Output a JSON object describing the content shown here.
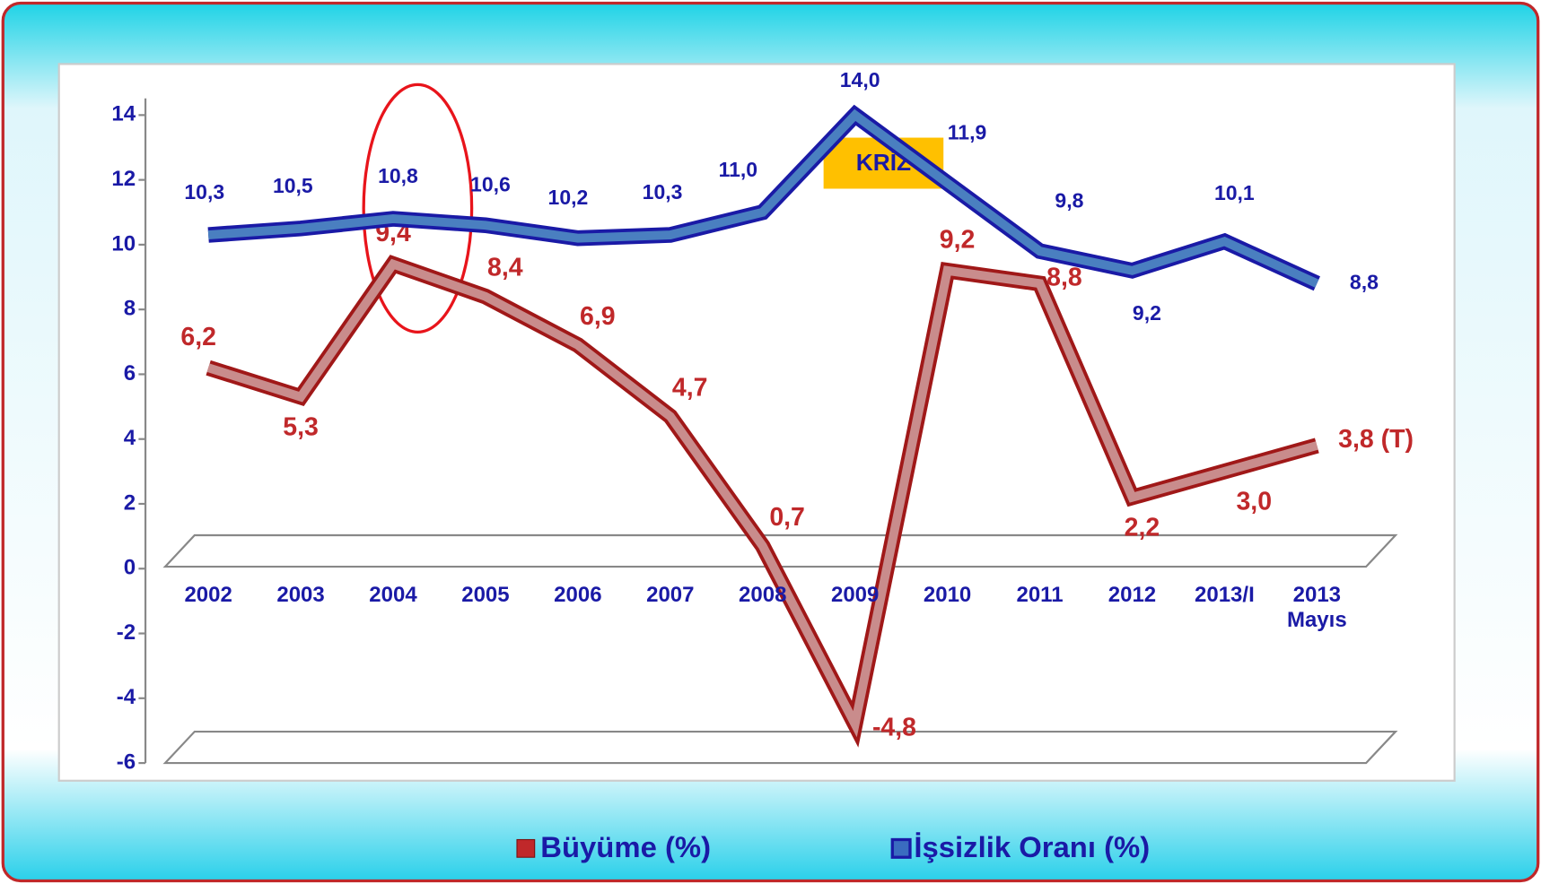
{
  "chart_data": {
    "type": "line",
    "annotation": "KRİZ",
    "categories": [
      "2002",
      "2003",
      "2004",
      "2005",
      "2006",
      "2007",
      "2008",
      "2009",
      "2010",
      "2011",
      "2012",
      "2013/I",
      "2013 Mayıs"
    ],
    "series": [
      {
        "name": "Büyüme (%)",
        "color": "#c0282a",
        "values": [
          6.2,
          5.3,
          9.4,
          8.4,
          6.9,
          4.7,
          0.7,
          -4.8,
          9.2,
          8.8,
          2.2,
          3.0,
          3.8
        ],
        "value_labels": [
          "6,2",
          "5,3",
          "9,4",
          "8,4",
          "6,9",
          "4,7",
          "0,7",
          "-4,8",
          "9,2",
          "8,8",
          "2,2",
          "3,0",
          "3,8 (T)"
        ]
      },
      {
        "name": "İşsizlik Oranı (%)",
        "color": "#1a1aa6",
        "values": [
          10.3,
          10.5,
          10.8,
          10.6,
          10.2,
          10.3,
          11.0,
          14.0,
          11.9,
          9.8,
          9.2,
          10.1,
          8.8
        ],
        "value_labels": [
          "10,3",
          "10,5",
          "10,8",
          "10,6",
          "10,2",
          "10,3",
          "11,0",
          "14,0",
          "11,9",
          "9,8",
          "9,2",
          "10,1",
          "8,8"
        ]
      }
    ],
    "ylim": [
      -6,
      14
    ],
    "yticks": [
      -6,
      -4,
      -2,
      0,
      2,
      4,
      6,
      8,
      10,
      12,
      14
    ]
  }
}
